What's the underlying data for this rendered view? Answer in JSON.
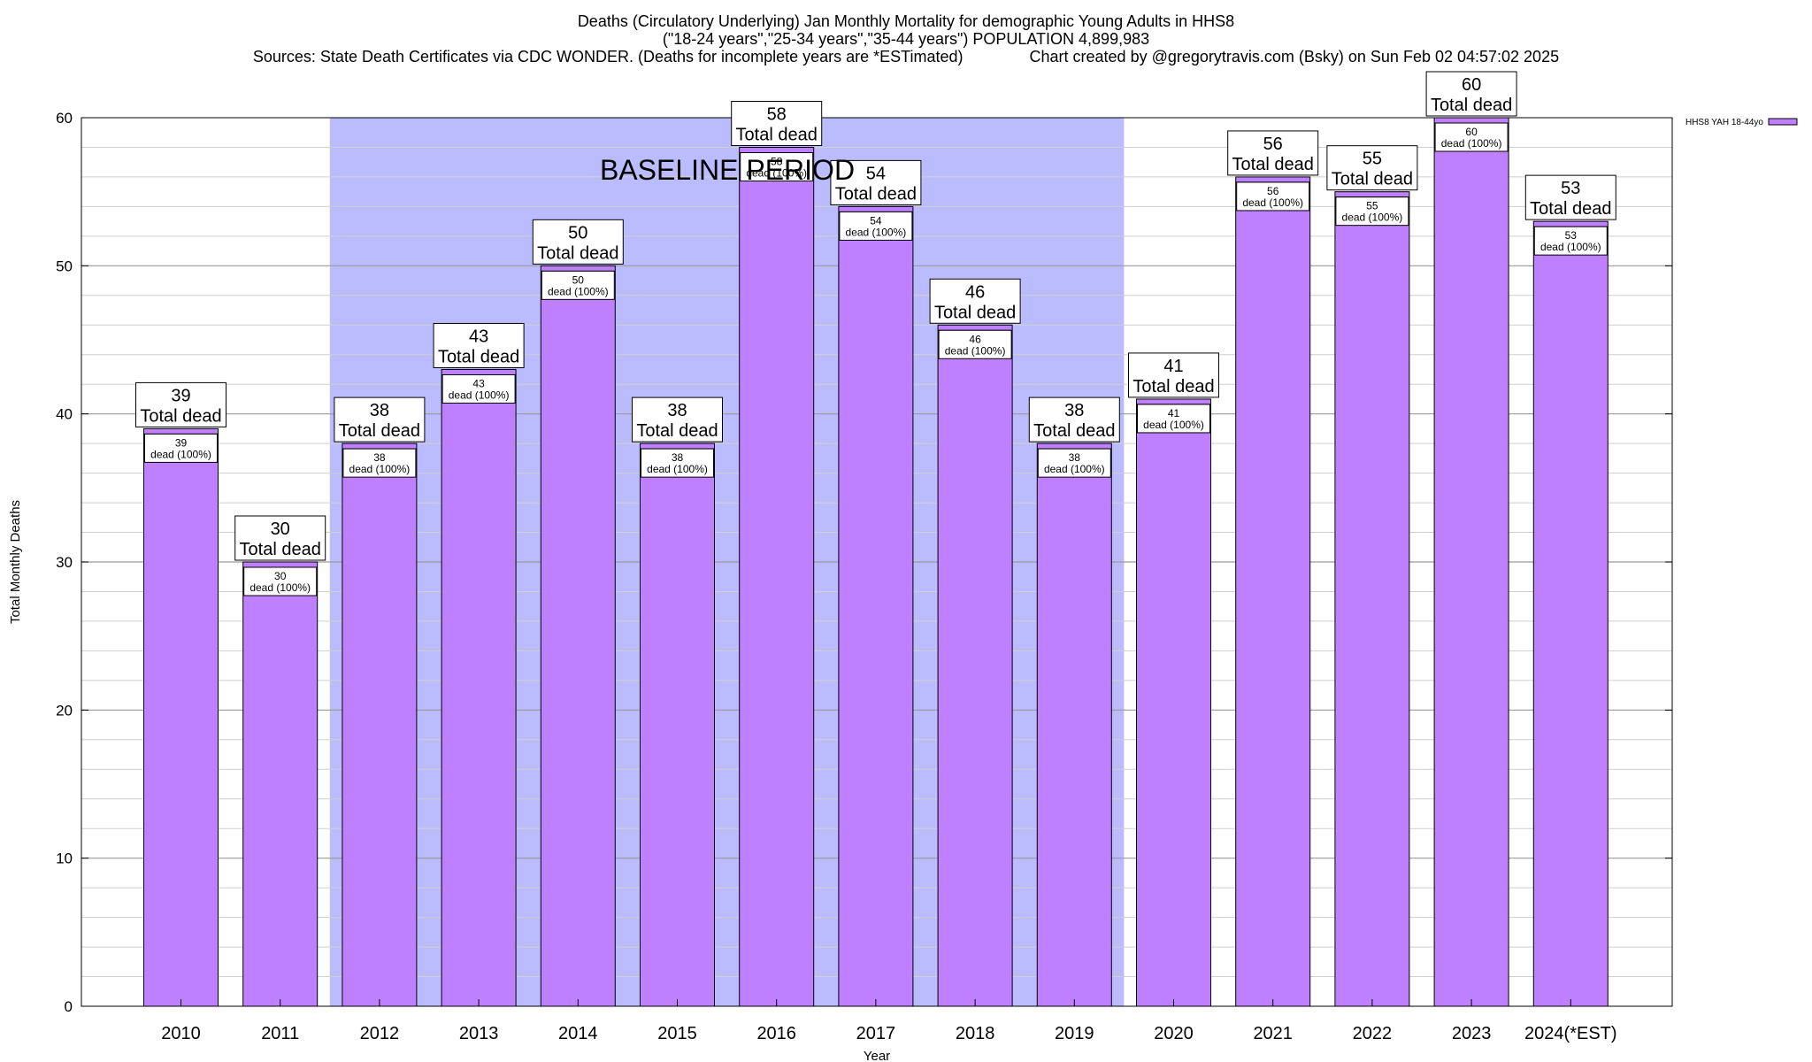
{
  "title_lines": [
    "Deaths (Circulatory Underlying) Jan Monthly Mortality for demographic Young Adults in HHS8",
    "(\"18-24 years\",\"25-34 years\",\"35-44 years\") POPULATION 4,899,983",
    "Sources: State Death Certificates via CDC WONDER. (Deaths for incomplete years are *ESTimated)               Chart created by @gregorytravis.com (Bsky) on Sun Feb 02 04:57:02 2025"
  ],
  "chart_data": {
    "type": "bar",
    "xlabel": "Year",
    "ylabel": "Total Monthly Deaths",
    "ylim": [
      0,
      60
    ],
    "y_ticks": [
      0,
      10,
      20,
      30,
      40,
      50,
      60
    ],
    "grid": true,
    "legend_position": "top-right",
    "categories": [
      "2010",
      "2011",
      "2012",
      "2013",
      "2014",
      "2015",
      "2016",
      "2017",
      "2018",
      "2019",
      "2020",
      "2021",
      "2022",
      "2023",
      "2024(*EST)"
    ],
    "series": [
      {
        "name": "HHS8 YAH 18-44yo",
        "color": "#bf80ff",
        "values": [
          39,
          30,
          38,
          43,
          50,
          38,
          58,
          54,
          46,
          38,
          41,
          56,
          55,
          60,
          53
        ]
      }
    ],
    "total_label_suffix": "Total dead",
    "inner_label_suffix": "dead (100%)",
    "baseline": {
      "label": "BASELINE PERIOD",
      "start": "2012",
      "end": "2019",
      "color": "#bbbbff"
    }
  }
}
